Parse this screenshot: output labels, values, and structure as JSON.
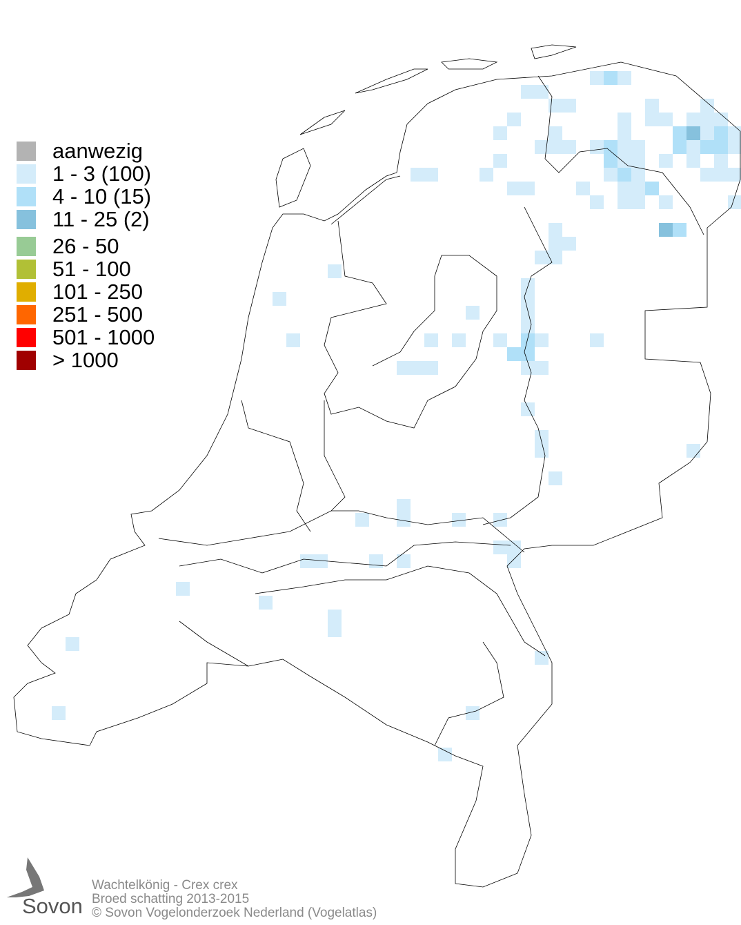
{
  "legend": {
    "items": [
      {
        "label": "aanwezig",
        "color": "#b3b3b3"
      },
      {
        "label": "1 - 3 (100)",
        "color": "#d4ecfa"
      },
      {
        "label": "4 - 10 (15)",
        "color": "#b0e0f8"
      },
      {
        "label": "11 - 25 (2)",
        "color": "#86c1dd"
      },
      {
        "label": "26 - 50",
        "color": "#98cb95"
      },
      {
        "label": "51 - 100",
        "color": "#b1c036"
      },
      {
        "label": "101 - 250",
        "color": "#e0ae00"
      },
      {
        "label": "251 - 500",
        "color": "#ff6600"
      },
      {
        "label": "501 - 1000",
        "color": "#ff0000"
      },
      {
        "label": "> 1000",
        "color": "#a00000"
      }
    ]
  },
  "footer": {
    "species": "Wachtelkönig - Crex crex",
    "subtitle": "Broed schatting 2013-2015",
    "copyright": "© Sovon Vogelonderzoek Nederland (Vogelatlas)"
  },
  "logo": {
    "text": "Sovon"
  }
}
